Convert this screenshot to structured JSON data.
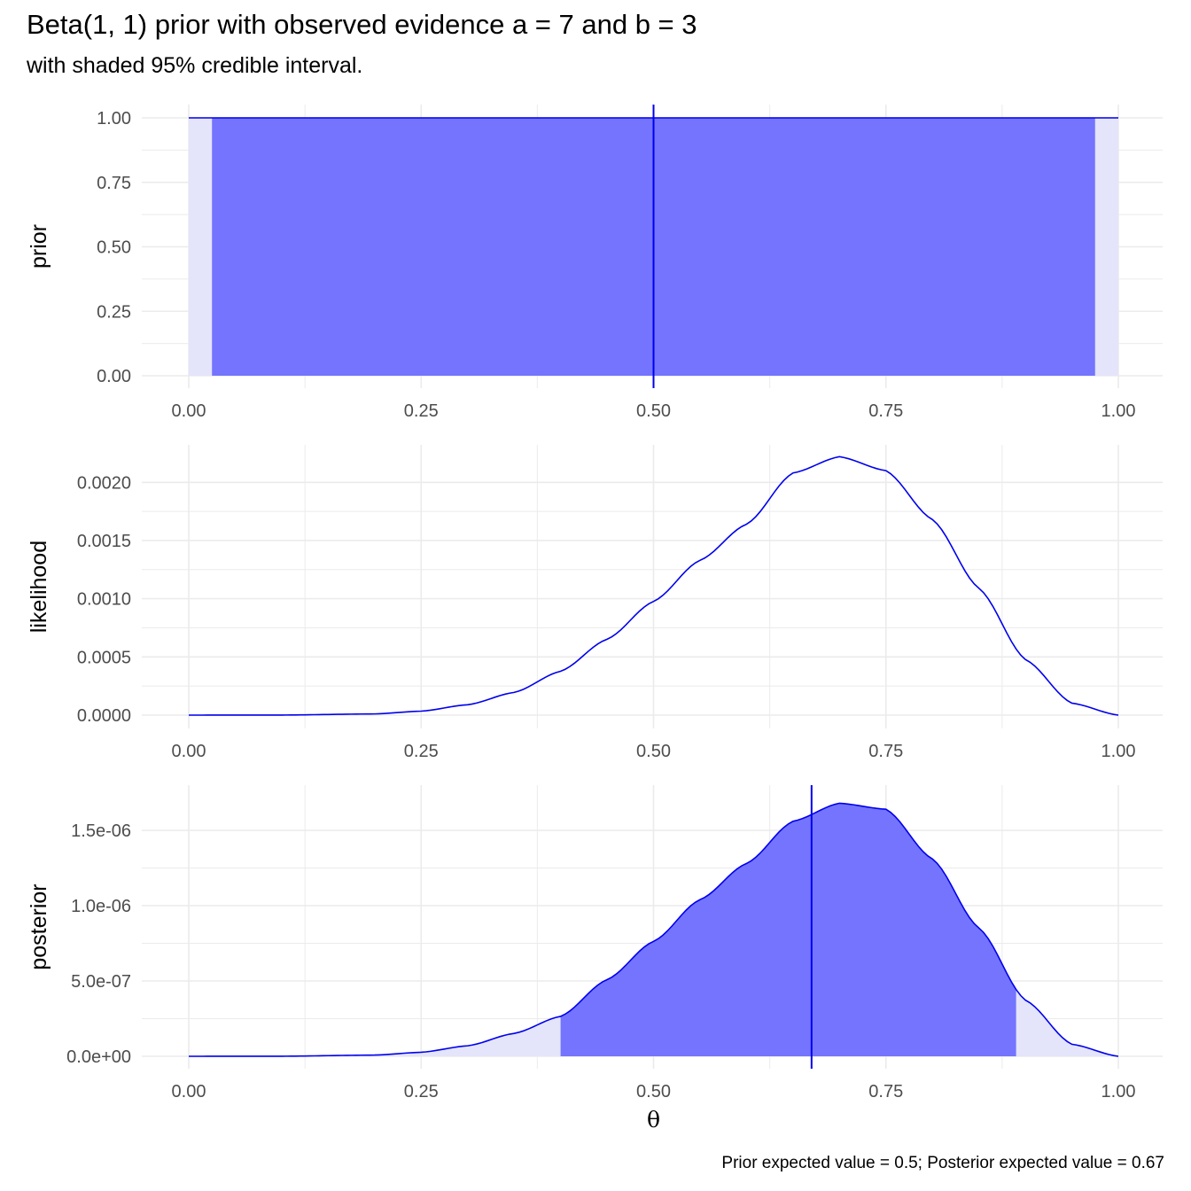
{
  "title": "Beta(1, 1) prior with observed evidence a = 7 and b = 3",
  "subtitle": "with shaded 95% credible interval.",
  "caption": "Prior expected value = 0.5; Posterior expected value = 0.67",
  "colors": {
    "line": "#0000ee",
    "interval_fill": "#6a6aff",
    "light_fill": "#e4e4fa",
    "grid": "#ebebeb"
  },
  "chart_data": [
    {
      "type": "area",
      "panel": "prior",
      "ylabel": "prior",
      "xlabel": "",
      "xlim": [
        0,
        1
      ],
      "ylim": [
        0,
        1
      ],
      "x_ticks": [
        0,
        0.25,
        0.5,
        0.75,
        1
      ],
      "x_tick_labels": [
        "0.00",
        "0.25",
        "0.50",
        "0.75",
        "1.00"
      ],
      "y_ticks": [
        0,
        0.25,
        0.5,
        0.75,
        1
      ],
      "y_tick_labels": [
        "0.00",
        "0.25",
        "0.50",
        "0.75",
        "1.00"
      ],
      "x": [
        0,
        0.1,
        0.2,
        0.3,
        0.4,
        0.5,
        0.6,
        0.7,
        0.8,
        0.9,
        1.0
      ],
      "y": [
        1,
        1,
        1,
        1,
        1,
        1,
        1,
        1,
        1,
        1,
        1
      ],
      "credible_interval": [
        0.025,
        0.975
      ],
      "expected_value": 0.5,
      "grid": true
    },
    {
      "type": "line",
      "panel": "likelihood",
      "ylabel": "likelihood",
      "xlabel": "",
      "xlim": [
        0,
        1
      ],
      "ylim": [
        0,
        0.0022
      ],
      "x_ticks": [
        0,
        0.25,
        0.5,
        0.75,
        1
      ],
      "x_tick_labels": [
        "0.00",
        "0.25",
        "0.50",
        "0.75",
        "1.00"
      ],
      "y_ticks": [
        0,
        0.0005,
        0.001,
        0.0015,
        0.002
      ],
      "y_tick_labels": [
        "0.0000",
        "0.0005",
        "0.0010",
        "0.0015",
        "0.0020"
      ],
      "x": [
        0,
        0.1,
        0.2,
        0.25,
        0.3,
        0.35,
        0.4,
        0.45,
        0.5,
        0.55,
        0.6,
        0.65,
        0.7,
        0.75,
        0.8,
        0.85,
        0.9,
        0.95,
        1.0
      ],
      "y": [
        0,
        7e-07,
        1.05e-05,
        3.43e-05,
        8.93e-05,
        0.000195,
        0.000377,
        0.000652,
        0.000977,
        0.00133,
        0.00164,
        0.00208,
        0.00222,
        0.0021,
        0.00168,
        0.00109,
        0.000478,
        0.000103,
        0
      ],
      "grid": true
    },
    {
      "type": "area",
      "panel": "posterior",
      "ylabel": "posterior",
      "xlabel": "θ",
      "xlim": [
        0,
        1
      ],
      "ylim": [
        0,
        1.7e-06
      ],
      "x_ticks": [
        0,
        0.25,
        0.5,
        0.75,
        1
      ],
      "x_tick_labels": [
        "0.00",
        "0.25",
        "0.50",
        "0.75",
        "1.00"
      ],
      "y_ticks": [
        0,
        5e-07,
        1e-06,
        1.5e-06
      ],
      "y_tick_labels": [
        "0.0e+00",
        "5.0e-07",
        "1.0e-06",
        "1.5e-06"
      ],
      "x": [
        0,
        0.1,
        0.2,
        0.25,
        0.3,
        0.35,
        0.4,
        0.45,
        0.5,
        0.55,
        0.6,
        0.65,
        0.7,
        0.75,
        0.8,
        0.85,
        0.9,
        0.95,
        1.0
      ],
      "y": [
        0,
        5.5e-10,
        8.2e-09,
        2.68e-08,
        6.98e-08,
        1.52e-07,
        2.65e-07,
        5.09e-07,
        7.63e-07,
        1.04e-06,
        1.28e-06,
        1.56e-06,
        1.68e-06,
        1.64e-06,
        1.31e-06,
        8.52e-07,
        3.73e-07,
        8e-08,
        0
      ],
      "credible_interval": [
        0.4,
        0.89
      ],
      "expected_value": 0.67,
      "grid": true
    }
  ]
}
